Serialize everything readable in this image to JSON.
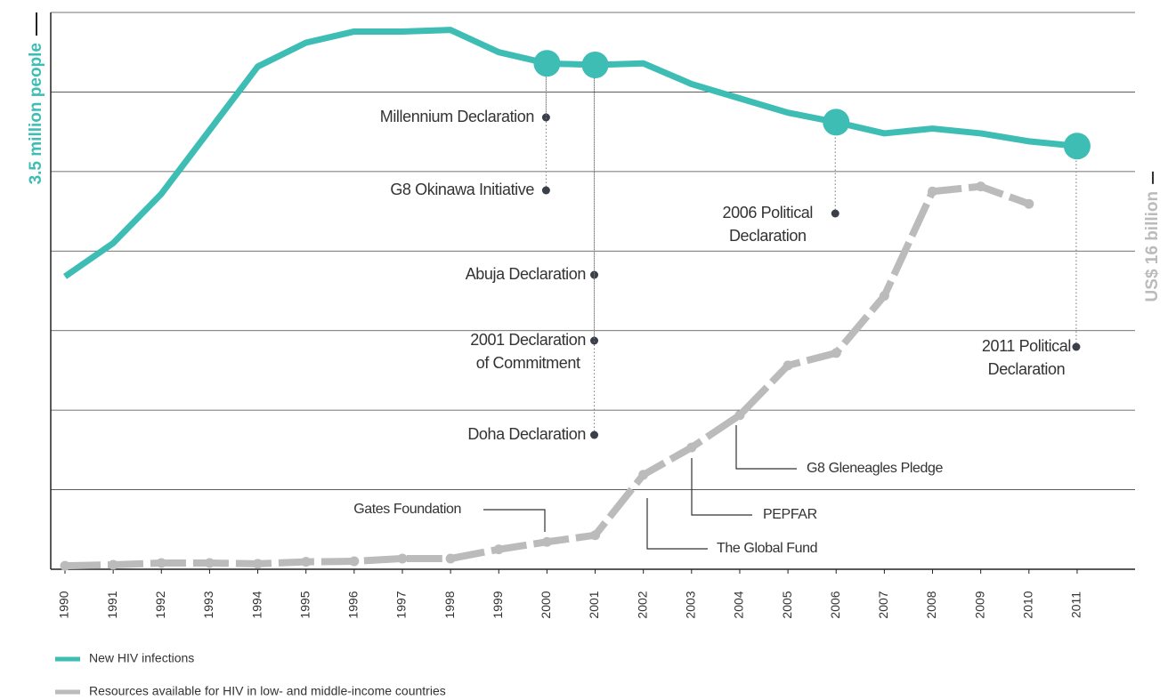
{
  "chart_data": {
    "type": "line",
    "categories": [
      "1990",
      "1991",
      "1992",
      "1993",
      "1994",
      "1995",
      "1996",
      "1997",
      "1998",
      "1999",
      "2000",
      "2001",
      "2002",
      "2003",
      "2004",
      "2005",
      "2006",
      "2007",
      "2008",
      "2009",
      "2010",
      "2011"
    ],
    "series": [
      {
        "name": "New HIV infections",
        "color": "#3dbdb4",
        "values": [
          1.84,
          2.05,
          2.36,
          2.76,
          3.16,
          3.31,
          3.38,
          3.38,
          3.39,
          3.25,
          3.18,
          3.17,
          3.18,
          3.05,
          2.96,
          2.87,
          2.81,
          2.74,
          2.77,
          2.74,
          2.69,
          2.66
        ]
      },
      {
        "name": "Resources available for HIV in low- and middle-income countries",
        "color": "#bbbbbb",
        "axis": "y2",
        "values": [
          0.14,
          0.18,
          0.25,
          0.25,
          0.22,
          0.3,
          0.32,
          0.43,
          0.43,
          0.8,
          1.1,
          1.37,
          3.8,
          4.9,
          6.2,
          8.2,
          8.7,
          11.0,
          15.2,
          15.4,
          14.7,
          null
        ]
      }
    ],
    "ylim": [
      0,
      3.5
    ],
    "yticks": [
      {
        "value": 3.5,
        "label": "3.5 million people"
      }
    ],
    "y2lim": [
      0,
      22.4
    ],
    "y2ticks": [
      {
        "value": 16,
        "label": "US$ 16 billion"
      }
    ],
    "grid": true,
    "annotations": [
      "Millennium Declaration",
      "G8 Okinawa Initiative",
      "Abuja Declaration",
      "2001 Declaration\nof Commitment",
      "Doha Declaration",
      "2006 Political\nDeclaration",
      "2011 Political\nDeclaration",
      "Gates Foundation",
      "The Global Fund",
      "PEPFAR",
      "G8 Gleneagles Pledge"
    ]
  }
}
